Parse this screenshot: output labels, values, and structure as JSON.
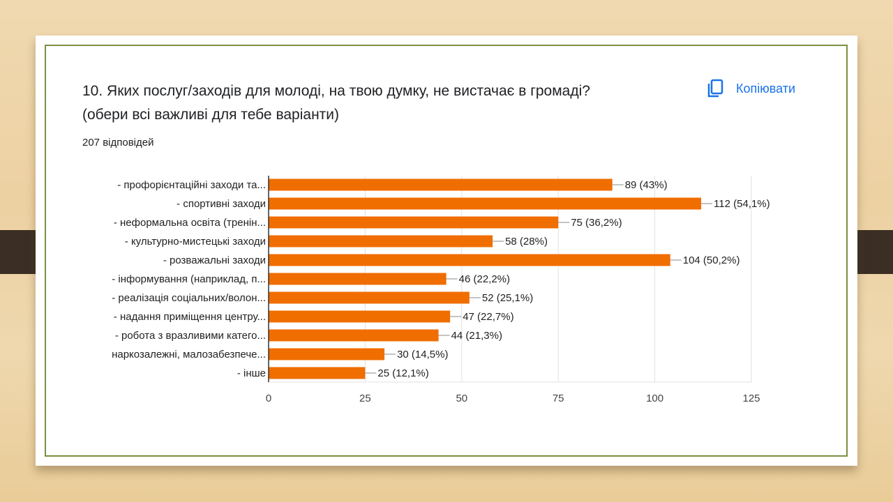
{
  "question": {
    "title_line1": "10. Яких послуг/заходів для молоді, на твою думку, не вистачає в громаді?",
    "title_line2": "(обери всі важливі для тебе варіанти)",
    "responses": "207 відповідей",
    "copy_label": "Копіювати",
    "copy_icon": "copy-icon"
  },
  "colors": {
    "bar": "#f06d00",
    "accent": "#1a73e8"
  },
  "chart_data": {
    "type": "bar",
    "orientation": "horizontal",
    "categories": [
      "- профорієнтаційні заходи та...",
      "- спортивні заходи",
      "- неформальна освіта (тренін...",
      "- культурно-мистецькі заходи",
      "- розважальні заходи",
      "- інформування (наприклад, п...",
      "- реалізація соціальних/волон...",
      "- надання приміщення центру...",
      "- робота з вразливими катего...",
      "наркозалежні, малозабезпече...",
      "- інше"
    ],
    "values": [
      89,
      112,
      75,
      58,
      104,
      46,
      52,
      47,
      44,
      30,
      25
    ],
    "data_labels": [
      "89 (43%)",
      "112 (54,1%)",
      "75 (36,2%)",
      "58 (28%)",
      "104 (50,2%)",
      "46 (22,2%)",
      "52 (25,1%)",
      "47 (22,7%)",
      "44 (21,3%)",
      "30 (14,5%)",
      "25 (12,1%)"
    ],
    "xlim": [
      0,
      125
    ],
    "xticks": [
      "0",
      "25",
      "50",
      "75",
      "100",
      "125"
    ],
    "grid": true
  }
}
